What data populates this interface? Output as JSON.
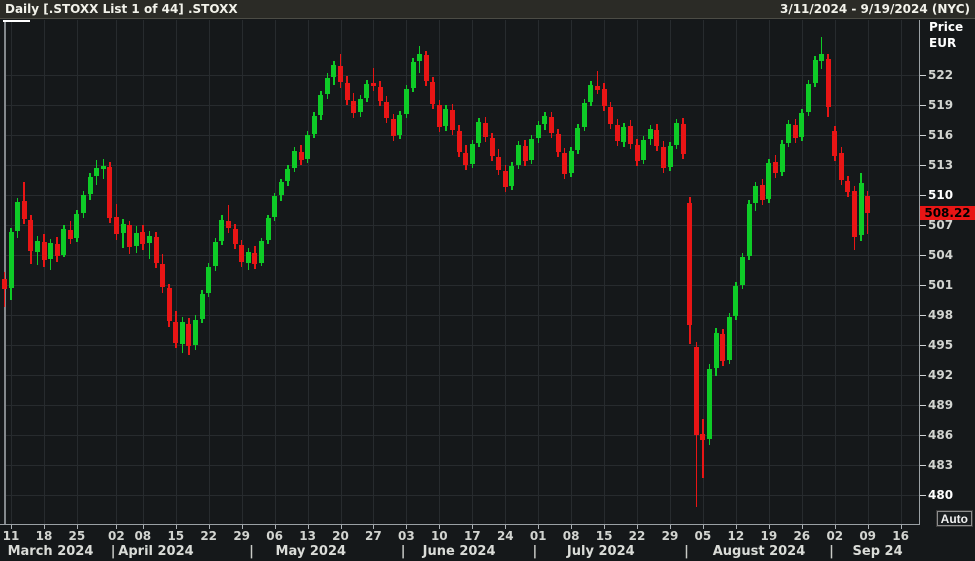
{
  "title_bar": {
    "title": "Daily [.STOXX List 1 of 44] .STOXX",
    "date_range": "3/11/2024 - 9/19/2024 (NYC)"
  },
  "y_axis": {
    "label_line1": "Price",
    "label_line2": "EUR",
    "ticks": [
      522,
      519,
      516,
      513,
      510,
      507,
      504,
      501,
      498,
      495,
      492,
      489,
      486,
      483,
      480
    ],
    "bold_ticks": [
      510,
      480
    ],
    "last_price_label": "508.22"
  },
  "x_axis": {
    "day_ticks": [
      {
        "label": "11",
        "i": 0
      },
      {
        "label": "18",
        "i": 5
      },
      {
        "label": "25",
        "i": 10
      },
      {
        "label": "02",
        "i": 16
      },
      {
        "label": "08",
        "i": 20
      },
      {
        "label": "15",
        "i": 25
      },
      {
        "label": "22",
        "i": 30
      },
      {
        "label": "29",
        "i": 35
      },
      {
        "label": "06",
        "i": 40
      },
      {
        "label": "13",
        "i": 45
      },
      {
        "label": "20",
        "i": 50
      },
      {
        "label": "27",
        "i": 55
      },
      {
        "label": "03",
        "i": 60
      },
      {
        "label": "10",
        "i": 65
      },
      {
        "label": "17",
        "i": 70
      },
      {
        "label": "24",
        "i": 75
      },
      {
        "label": "01",
        "i": 80
      },
      {
        "label": "08",
        "i": 85
      },
      {
        "label": "15",
        "i": 90
      },
      {
        "label": "22",
        "i": 95
      },
      {
        "label": "29",
        "i": 100
      },
      {
        "label": "05",
        "i": 105
      },
      {
        "label": "12",
        "i": 110
      },
      {
        "label": "19",
        "i": 115
      },
      {
        "label": "26",
        "i": 120
      },
      {
        "label": "02",
        "i": 125
      },
      {
        "label": "09",
        "i": 130
      },
      {
        "label": "16",
        "i": 135
      }
    ],
    "months": [
      {
        "label": "March 2024",
        "center_i": 6
      },
      {
        "label": "April 2024",
        "center_i": 22
      },
      {
        "label": "May 2024",
        "center_i": 45.5
      },
      {
        "label": "June 2024",
        "center_i": 68
      },
      {
        "label": "July 2024",
        "center_i": 89.5
      },
      {
        "label": "August 2024",
        "center_i": 113.5
      },
      {
        "label": "Sep 24",
        "center_i": 131.5
      }
    ],
    "month_separators_i": [
      15.5,
      36.5,
      59.5,
      79.5,
      102.5,
      124.5
    ]
  },
  "auto_button_label": "Auto",
  "colors": {
    "up": "#0ecb27",
    "down": "#e81515",
    "price_tag_bg": "#e81515",
    "grid": "#272b2e",
    "background": "#15181a"
  },
  "chart_data": {
    "type": "candlestick",
    "title": "Daily [.STOXX List 1 of 44] .STOXX",
    "ylabel": "Price EUR",
    "ylim": [
      477,
      527.5
    ],
    "y_tick_step": 3,
    "x_slots": 139,
    "first_candle_slot": -1,
    "last_price": 508.22,
    "candles": [
      [
        "3/8",
        501.6,
        502.3,
        498.8,
        500.6
      ],
      [
        "3/11",
        500.7,
        506.7,
        499.5,
        506.3
      ],
      [
        "3/12",
        506.4,
        509.7,
        505.7,
        509.3
      ],
      [
        "3/13",
        509.4,
        511.3,
        507.1,
        507.6
      ],
      [
        "3/14",
        507.5,
        508.0,
        503.1,
        504.4
      ],
      [
        "3/15",
        504.3,
        505.9,
        503.0,
        505.4
      ],
      [
        "3/18",
        505.3,
        506.1,
        502.8,
        503.5
      ],
      [
        "3/19",
        503.6,
        505.6,
        502.5,
        505.2
      ],
      [
        "3/20",
        505.1,
        505.8,
        503.3,
        503.9
      ],
      [
        "3/21",
        504.0,
        507.0,
        503.8,
        506.6
      ],
      [
        "3/22",
        506.5,
        507.4,
        505.1,
        505.6
      ],
      [
        "3/25",
        505.7,
        508.5,
        505.3,
        508.1
      ],
      [
        "3/26",
        508.2,
        510.4,
        507.7,
        510.0
      ],
      [
        "3/27",
        510.1,
        512.2,
        509.5,
        511.8
      ],
      [
        "3/28",
        511.9,
        513.5,
        511.0,
        512.7
      ],
      [
        "4/1",
        512.6,
        513.6,
        511.6,
        512.9
      ],
      [
        "4/2",
        512.8,
        513.3,
        507.2,
        507.7
      ],
      [
        "4/3",
        507.8,
        509.1,
        505.5,
        506.1
      ],
      [
        "4/4",
        506.2,
        507.6,
        504.7,
        507.1
      ],
      [
        "4/5",
        507.0,
        507.4,
        504.1,
        504.8
      ],
      [
        "4/8",
        504.9,
        506.9,
        504.2,
        506.2
      ],
      [
        "4/9",
        506.3,
        507.0,
        504.5,
        505.1
      ],
      [
        "4/10",
        505.2,
        506.4,
        503.6,
        505.9
      ],
      [
        "4/11",
        505.8,
        506.3,
        502.7,
        503.2
      ],
      [
        "4/12",
        503.1,
        504.1,
        500.2,
        500.8
      ],
      [
        "4/15",
        500.7,
        501.1,
        496.8,
        497.4
      ],
      [
        "4/16",
        497.3,
        498.4,
        494.7,
        495.2
      ],
      [
        "4/17",
        495.1,
        497.8,
        494.2,
        497.3
      ],
      [
        "4/18",
        497.1,
        497.7,
        494.0,
        494.9
      ],
      [
        "4/19",
        495.0,
        498.0,
        494.5,
        497.5
      ],
      [
        "4/22",
        497.6,
        500.5,
        497.2,
        500.1
      ],
      [
        "4/23",
        500.2,
        503.2,
        499.8,
        502.8
      ],
      [
        "4/24",
        502.9,
        505.7,
        502.4,
        505.3
      ],
      [
        "4/25",
        505.4,
        508.0,
        505.0,
        507.5
      ],
      [
        "4/26",
        507.4,
        509.0,
        506.2,
        506.7
      ],
      [
        "4/29",
        506.6,
        507.1,
        504.6,
        505.1
      ],
      [
        "4/30",
        505.0,
        505.5,
        502.8,
        503.3
      ],
      [
        "5/1",
        503.2,
        504.7,
        502.5,
        504.3
      ],
      [
        "5/2",
        504.2,
        504.9,
        502.6,
        503.1
      ],
      [
        "5/3",
        503.2,
        505.7,
        502.9,
        505.4
      ],
      [
        "5/6",
        505.5,
        508.0,
        505.1,
        507.7
      ],
      [
        "5/7",
        507.8,
        510.2,
        507.4,
        509.9
      ],
      [
        "5/8",
        510.0,
        511.6,
        509.4,
        511.3
      ],
      [
        "5/9",
        511.4,
        513.0,
        510.9,
        512.6
      ],
      [
        "5/10",
        512.7,
        514.8,
        512.3,
        514.4
      ],
      [
        "5/13",
        514.3,
        515.0,
        513.0,
        513.5
      ],
      [
        "5/14",
        513.6,
        516.4,
        513.2,
        516.0
      ],
      [
        "5/15",
        516.1,
        518.3,
        515.7,
        517.9
      ],
      [
        "5/16",
        518.0,
        520.4,
        517.5,
        520.0
      ],
      [
        "5/17",
        520.1,
        522.2,
        519.6,
        521.7
      ],
      [
        "5/20",
        521.8,
        523.4,
        521.0,
        523.0
      ],
      [
        "5/21",
        522.9,
        524.1,
        520.7,
        521.3
      ],
      [
        "5/22",
        521.2,
        521.9,
        519.0,
        519.5
      ],
      [
        "5/23",
        519.4,
        520.2,
        517.7,
        518.2
      ],
      [
        "5/24",
        518.3,
        520.0,
        517.8,
        519.6
      ],
      [
        "5/27",
        519.7,
        521.5,
        519.3,
        521.1
      ],
      [
        "5/28",
        521.2,
        522.7,
        520.4,
        520.9
      ],
      [
        "5/29",
        520.8,
        521.4,
        518.9,
        519.4
      ],
      [
        "5/30",
        519.3,
        519.9,
        517.2,
        517.7
      ],
      [
        "5/31",
        517.6,
        518.1,
        515.4,
        515.9
      ],
      [
        "6/3",
        516.0,
        518.4,
        515.6,
        518.0
      ],
      [
        "6/4",
        518.1,
        521.0,
        517.7,
        520.6
      ],
      [
        "6/5",
        520.7,
        523.7,
        520.3,
        523.3
      ],
      [
        "6/6",
        523.4,
        524.9,
        522.2,
        524.1
      ],
      [
        "6/7",
        524.0,
        524.4,
        520.9,
        521.4
      ],
      [
        "6/10",
        521.3,
        521.8,
        518.6,
        519.1
      ],
      [
        "6/11",
        519.0,
        519.5,
        516.3,
        516.8
      ],
      [
        "6/12",
        516.9,
        519.0,
        516.4,
        518.6
      ],
      [
        "6/13",
        518.5,
        519.1,
        516.0,
        516.5
      ],
      [
        "6/14",
        516.4,
        517.0,
        513.8,
        514.3
      ],
      [
        "6/17",
        514.2,
        515.0,
        512.5,
        513.0
      ],
      [
        "6/18",
        513.1,
        515.5,
        512.7,
        515.1
      ],
      [
        "6/19",
        515.2,
        517.7,
        514.8,
        517.3
      ],
      [
        "6/20",
        517.2,
        517.8,
        515.3,
        515.8
      ],
      [
        "6/21",
        515.7,
        516.2,
        513.4,
        513.9
      ],
      [
        "6/24",
        513.8,
        514.6,
        512.0,
        512.5
      ],
      [
        "6/25",
        512.4,
        513.0,
        510.3,
        510.8
      ],
      [
        "6/26",
        510.9,
        513.3,
        510.5,
        512.9
      ],
      [
        "6/27",
        513.0,
        515.4,
        512.6,
        515.0
      ],
      [
        "6/28",
        514.9,
        515.5,
        512.9,
        513.4
      ],
      [
        "7/1",
        513.5,
        516.0,
        513.1,
        515.6
      ],
      [
        "7/2",
        515.7,
        517.4,
        515.2,
        517.0
      ],
      [
        "7/3",
        517.1,
        518.3,
        516.5,
        517.9
      ],
      [
        "7/4",
        517.8,
        518.3,
        515.7,
        516.2
      ],
      [
        "7/5",
        516.1,
        516.6,
        513.8,
        514.3
      ],
      [
        "7/8",
        514.2,
        514.7,
        511.6,
        512.1
      ],
      [
        "7/9",
        512.2,
        514.8,
        511.8,
        514.4
      ],
      [
        "7/10",
        514.5,
        517.1,
        514.1,
        516.7
      ],
      [
        "7/11",
        516.8,
        519.6,
        516.4,
        519.2
      ],
      [
        "7/12",
        519.3,
        521.4,
        518.9,
        521.0
      ],
      [
        "7/15",
        520.9,
        522.4,
        520.1,
        520.5
      ],
      [
        "7/16",
        520.6,
        521.2,
        518.4,
        518.9
      ],
      [
        "7/17",
        518.8,
        519.3,
        516.6,
        517.1
      ],
      [
        "7/18",
        517.0,
        517.6,
        514.9,
        515.4
      ],
      [
        "7/19",
        515.3,
        517.2,
        514.8,
        516.8
      ],
      [
        "7/22",
        516.9,
        517.5,
        514.6,
        515.1
      ],
      [
        "7/23",
        515.0,
        515.6,
        512.9,
        513.4
      ],
      [
        "7/24",
        513.5,
        515.9,
        513.1,
        515.5
      ],
      [
        "7/25",
        515.6,
        517.0,
        515.0,
        516.6
      ],
      [
        "7/26",
        516.5,
        517.1,
        514.4,
        514.9
      ],
      [
        "7/29",
        514.8,
        515.4,
        512.2,
        512.7
      ],
      [
        "7/30",
        512.8,
        515.3,
        512.4,
        514.9
      ],
      [
        "7/31",
        515.0,
        517.6,
        514.6,
        517.2
      ],
      [
        "8/1",
        517.1,
        517.7,
        513.6,
        514.1
      ],
      [
        "8/2",
        509.2,
        509.8,
        495.1,
        497.0
      ],
      [
        "8/5",
        494.8,
        495.3,
        478.8,
        486.0
      ],
      [
        "8/6",
        486.1,
        487.6,
        481.7,
        485.5
      ],
      [
        "8/7",
        485.6,
        493.1,
        485.0,
        492.6
      ],
      [
        "8/8",
        492.7,
        496.7,
        491.9,
        496.2
      ],
      [
        "8/9",
        496.1,
        496.6,
        492.9,
        493.4
      ],
      [
        "8/12",
        493.5,
        498.2,
        493.1,
        497.8
      ],
      [
        "8/13",
        497.9,
        501.3,
        497.5,
        500.9
      ],
      [
        "8/14",
        501.0,
        504.2,
        500.6,
        503.8
      ],
      [
        "8/15",
        503.9,
        509.5,
        503.5,
        509.1
      ],
      [
        "8/16",
        509.2,
        511.3,
        508.4,
        510.9
      ],
      [
        "8/19",
        511.0,
        511.6,
        509.0,
        509.5
      ],
      [
        "8/20",
        509.6,
        513.6,
        509.2,
        513.2
      ],
      [
        "8/21",
        513.3,
        514.0,
        511.7,
        512.2
      ],
      [
        "8/22",
        512.3,
        515.5,
        511.9,
        515.1
      ],
      [
        "8/23",
        515.2,
        517.5,
        514.8,
        517.1
      ],
      [
        "8/26",
        517.0,
        517.6,
        515.2,
        515.7
      ],
      [
        "8/27",
        515.8,
        518.6,
        515.4,
        518.2
      ],
      [
        "8/28",
        518.3,
        521.5,
        517.9,
        521.1
      ],
      [
        "8/29",
        521.2,
        523.9,
        520.8,
        523.5
      ],
      [
        "8/30",
        523.4,
        525.8,
        522.6,
        524.1
      ],
      [
        "9/2",
        523.6,
        524.1,
        517.8,
        518.8
      ],
      [
        "9/3",
        516.4,
        516.9,
        513.4,
        513.9
      ],
      [
        "9/4",
        514.2,
        514.8,
        511.0,
        511.5
      ],
      [
        "9/5",
        511.4,
        511.9,
        509.8,
        510.3
      ],
      [
        "9/6",
        510.4,
        510.9,
        504.5,
        505.8
      ],
      [
        "9/9",
        506.0,
        512.2,
        505.4,
        511.2
      ],
      [
        "9/10",
        509.9,
        510.4,
        506.1,
        508.22
      ]
    ]
  }
}
